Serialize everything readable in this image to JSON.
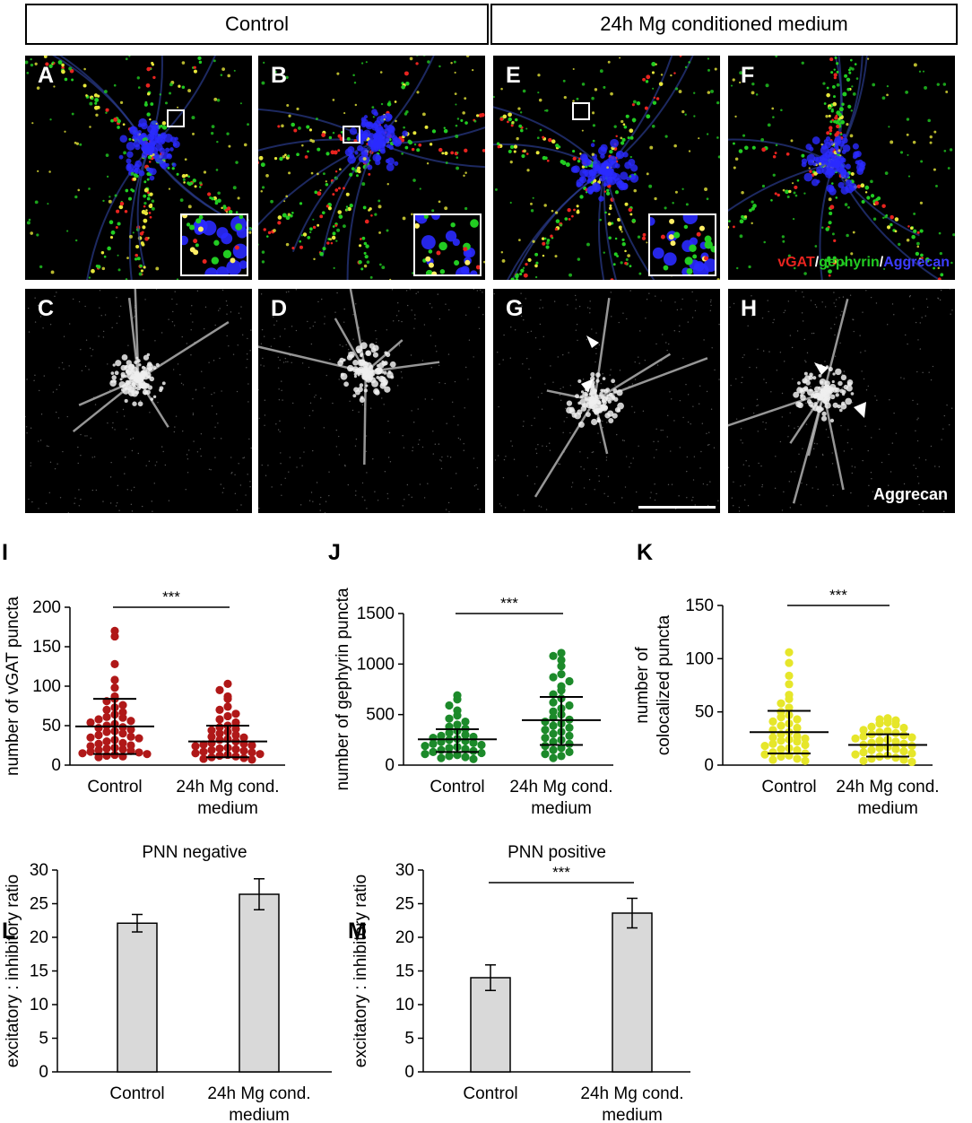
{
  "headers": {
    "control": "Control",
    "treatment": "24h Mg conditioned medium"
  },
  "micrographs": {
    "top_row": [
      {
        "id": "A",
        "has_inset": true
      },
      {
        "id": "B",
        "has_inset": true
      },
      {
        "id": "E",
        "has_inset": true
      },
      {
        "id": "F",
        "has_inset": false
      }
    ],
    "bottom_row": [
      {
        "id": "C"
      },
      {
        "id": "D"
      },
      {
        "id": "G"
      },
      {
        "id": "H"
      }
    ],
    "channel_legend": {
      "vgat": "vGAT",
      "sep1": "/",
      "gephyrin": "gephyrin",
      "sep2": "/",
      "aggrecan": "Aggrecan"
    },
    "aggrecan_label": "Aggrecan",
    "colors": {
      "vgat": "#e8241f",
      "gephyrin": "#22cc22",
      "aggrecan": "#2a2aff"
    }
  },
  "chart_data": [
    {
      "panel": "I",
      "type": "scatter",
      "ylabel": "number of vGAT puncta",
      "categories": [
        "Control",
        "24h Mg cond.\nmedium"
      ],
      "ylim": [
        0,
        200
      ],
      "yticks": [
        0,
        50,
        100,
        150,
        200
      ],
      "color": "#b01818",
      "series": [
        {
          "values": [
            170,
            163,
            128,
            108,
            98,
            87,
            84,
            81,
            76,
            73,
            70,
            67,
            64,
            61,
            60,
            58,
            56,
            54,
            52,
            50,
            48,
            47,
            45,
            43,
            42,
            40,
            38,
            36,
            35,
            34,
            32,
            30,
            28,
            27,
            25,
            24,
            22,
            21,
            20,
            19,
            18,
            17,
            16,
            15,
            14,
            13,
            12,
            11,
            10
          ]
        },
        {
          "values": [
            103,
            95,
            87,
            84,
            74,
            70,
            65,
            62,
            58,
            54,
            50,
            48,
            46,
            44,
            42,
            40,
            38,
            36,
            35,
            33,
            32,
            30,
            28,
            27,
            26,
            25,
            24,
            22,
            21,
            20,
            19,
            18,
            17,
            16,
            15,
            14,
            13,
            12,
            11,
            10,
            9,
            8,
            7
          ]
        }
      ],
      "mean": [
        49,
        30
      ],
      "err_low": [
        14,
        10
      ],
      "err_high": [
        84,
        50
      ],
      "significance": "***"
    },
    {
      "panel": "J",
      "type": "scatter",
      "ylabel": "number of gephyrin puncta",
      "categories": [
        "Control",
        "24h Mg cond.\nmedium"
      ],
      "ylim": [
        0,
        1500
      ],
      "yticks": [
        0,
        500,
        1000,
        1500
      ],
      "color": "#1c8a2a",
      "series": [
        {
          "values": [
            690,
            650,
            590,
            540,
            490,
            460,
            430,
            400,
            380,
            360,
            340,
            320,
            300,
            290,
            280,
            270,
            260,
            250,
            240,
            230,
            220,
            210,
            200,
            190,
            180,
            170,
            160,
            150,
            140,
            130,
            120,
            110,
            100,
            90,
            80,
            70,
            60
          ]
        },
        {
          "values": [
            1110,
            1080,
            1040,
            980,
            900,
            870,
            830,
            780,
            740,
            700,
            660,
            620,
            590,
            560,
            530,
            500,
            470,
            450,
            430,
            410,
            390,
            370,
            350,
            330,
            310,
            290,
            270,
            250,
            230,
            210,
            190,
            170,
            150,
            130,
            110,
            90,
            70
          ]
        }
      ],
      "mean": [
        255,
        445
      ],
      "err_low": [
        130,
        200
      ],
      "err_high": [
        355,
        675
      ],
      "significance": "***"
    },
    {
      "panel": "K",
      "type": "scatter",
      "ylabel": "number of\ncolocalized puncta",
      "categories": [
        "Control",
        "24h Mg cond.\nmedium"
      ],
      "ylim": [
        0,
        150
      ],
      "yticks": [
        0,
        50,
        100,
        150
      ],
      "color": "#e6e62a",
      "series": [
        {
          "values": [
            106,
            96,
            84,
            76,
            66,
            62,
            58,
            54,
            50,
            47,
            45,
            43,
            41,
            39,
            37,
            35,
            33,
            31,
            29,
            27,
            26,
            25,
            24,
            23,
            22,
            20,
            19,
            18,
            16,
            15,
            14,
            12,
            11,
            10,
            9,
            8,
            6,
            5,
            4
          ]
        },
        {
          "values": [
            44,
            43,
            42,
            40,
            39,
            38,
            36,
            35,
            33,
            32,
            31,
            30,
            29,
            28,
            27,
            26,
            25,
            24,
            23,
            22,
            21,
            20,
            19,
            18,
            17,
            16,
            15,
            14,
            13,
            12,
            11,
            10,
            9,
            8,
            7,
            6,
            5,
            4,
            3
          ]
        }
      ],
      "mean": [
        31,
        19
      ],
      "err_low": [
        11,
        8
      ],
      "err_high": [
        51,
        29
      ],
      "significance": "***"
    },
    {
      "panel": "L",
      "type": "bar",
      "title": "PNN negative",
      "ylabel": "excitatory : inhibitory ratio",
      "categories": [
        "Control",
        "24h Mg cond.\nmedium"
      ],
      "values": [
        22.1,
        26.4
      ],
      "err": [
        1.3,
        2.3
      ],
      "ylim": [
        0,
        30
      ],
      "yticks": [
        0,
        5,
        10,
        15,
        20,
        25,
        30
      ],
      "color": "#d9d9d9"
    },
    {
      "panel": "M",
      "type": "bar",
      "title": "PNN positive",
      "ylabel": "excitatory : inhibitory ratio",
      "categories": [
        "Control",
        "24h Mg cond.\nmedium"
      ],
      "values": [
        14.0,
        23.6
      ],
      "err": [
        1.9,
        2.2
      ],
      "ylim": [
        0,
        30
      ],
      "yticks": [
        0,
        5,
        10,
        15,
        20,
        25,
        30
      ],
      "color": "#d9d9d9",
      "significance": "***"
    }
  ]
}
